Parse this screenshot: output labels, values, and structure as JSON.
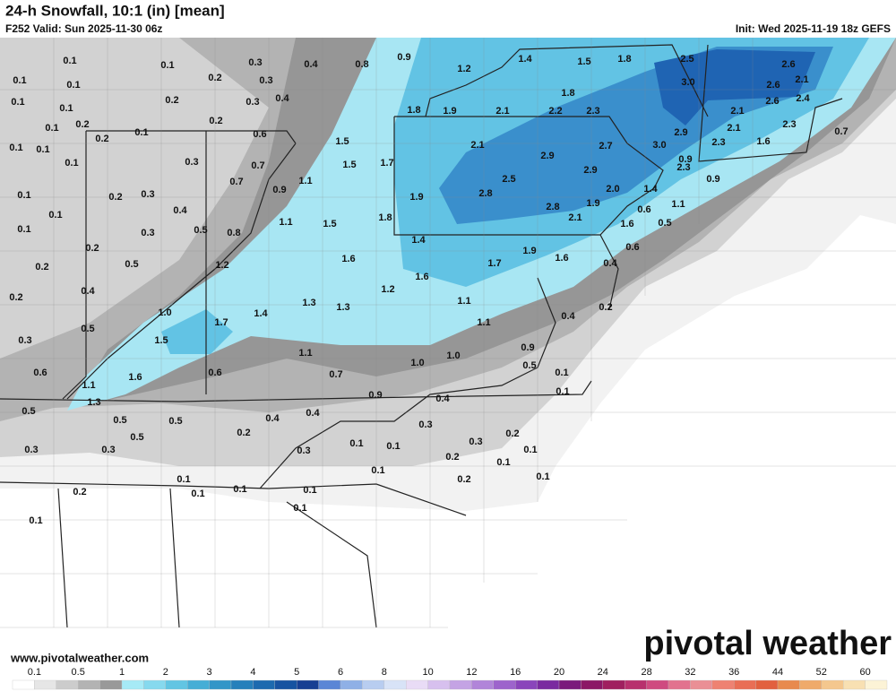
{
  "header": {
    "title": "24-h Snowfall, 10:1 (in) [mean]",
    "valid": "F252 Valid: Sun 2025-11-30 06z",
    "init": "Init: Wed 2025-11-19 18z GEFS"
  },
  "map": {
    "labels": [
      "0.1",
      "0.1",
      "0.2",
      "0.3",
      "0.4",
      "0.8",
      "0.9",
      "1.2",
      "1.4",
      "1.5",
      "1.8",
      "2.5",
      "2.6",
      "0.1",
      "0.1",
      "0.3",
      "3.0",
      "2.1",
      "2.6",
      "0.1",
      "0.1",
      "0.2",
      "0.3",
      "0.4",
      "1.8",
      "2.6",
      "2.4",
      "1.8",
      "1.9",
      "2.1",
      "2.2",
      "2.3",
      "2.1",
      "0.1",
      "0.2",
      "0.2",
      "0.1",
      "0.2",
      "0.6",
      "2.9",
      "2.1",
      "2.3",
      "0.1",
      "0.1",
      "1.5",
      "2.1",
      "2.7",
      "3.0",
      "2.3",
      "1.6",
      "0.7",
      "0.3",
      "0.7",
      "1.5",
      "1.7",
      "2.9",
      "0.9",
      "0.1",
      "0.7",
      "1.1",
      "2.9",
      "2.5",
      "2.3",
      "0.9",
      "0.1",
      "0.2",
      "0.3",
      "0.9",
      "1.9",
      "2.8",
      "2.0",
      "1.4",
      "1.1",
      "0.1",
      "0.4",
      "2.8",
      "2.1",
      "1.9",
      "0.6",
      "0.1",
      "0.3",
      "0.5",
      "0.8",
      "1.1",
      "1.5",
      "1.8",
      "1.6",
      "0.5",
      "0.2",
      "1.4",
      "0.6",
      "0.2",
      "0.5",
      "1.2",
      "1.6",
      "1.7",
      "1.9",
      "1.6",
      "0.4",
      "0.4",
      "1.6",
      "1.2",
      "1.1",
      "0.2",
      "0.2",
      "1.0",
      "1.4",
      "1.3",
      "1.3",
      "0.4",
      "1.1",
      "0.5",
      "1.7",
      "0.3",
      "1.5",
      "1.1",
      "0.9",
      "0.5",
      "0.6",
      "0.6",
      "1.6",
      "0.7",
      "1.0",
      "1.0",
      "0.1",
      "1.1",
      "0.9",
      "0.4",
      "0.1",
      "1.3",
      "0.5",
      "0.4",
      "0.4",
      "0.5",
      "0.5",
      "0.3",
      "0.2",
      "0.5",
      "0.2",
      "0.3",
      "0.3",
      "0.3",
      "0.1",
      "0.1",
      "0.3",
      "0.1",
      "0.2",
      "0.1",
      "0.1",
      "0.1",
      "0.2",
      "0.1",
      "0.2",
      "0.1",
      "0.1",
      "0.1",
      "0.1",
      "0.1"
    ]
  },
  "footer": {
    "website": "www.pivotalweather.com",
    "brand": "pivotal weather"
  },
  "colorbar": {
    "ticks": [
      0.1,
      0.5,
      1,
      2,
      3,
      4,
      5,
      6,
      8,
      10,
      12,
      16,
      20,
      24,
      28,
      32,
      36,
      44,
      52,
      60
    ],
    "colors": [
      "#ffffff",
      "#e6e6e6",
      "#cccccc",
      "#b3b3b3",
      "#999999",
      "#a6eaf6",
      "#86d9ee",
      "#62c5e3",
      "#46aed6",
      "#3296c8",
      "#2680bb",
      "#1d6aaf",
      "#1753a1",
      "#173f93",
      "#5a86d6",
      "#8fb0e6",
      "#b8cdf0",
      "#d8e3f7",
      "#e9dcf6",
      "#d7c0ee",
      "#c4a3e4",
      "#b185d9",
      "#9d64cc",
      "#8a45bb",
      "#7a2aa0",
      "#7b1a7c",
      "#8c1866",
      "#a0205f",
      "#b8306d",
      "#cf4a80",
      "#e2728e",
      "#ea8f95",
      "#ee8272",
      "#e96e55",
      "#e2603f",
      "#e88a4e",
      "#efaa6a",
      "#f4c78e",
      "#f8e0b2",
      "#fcf3d6"
    ]
  }
}
